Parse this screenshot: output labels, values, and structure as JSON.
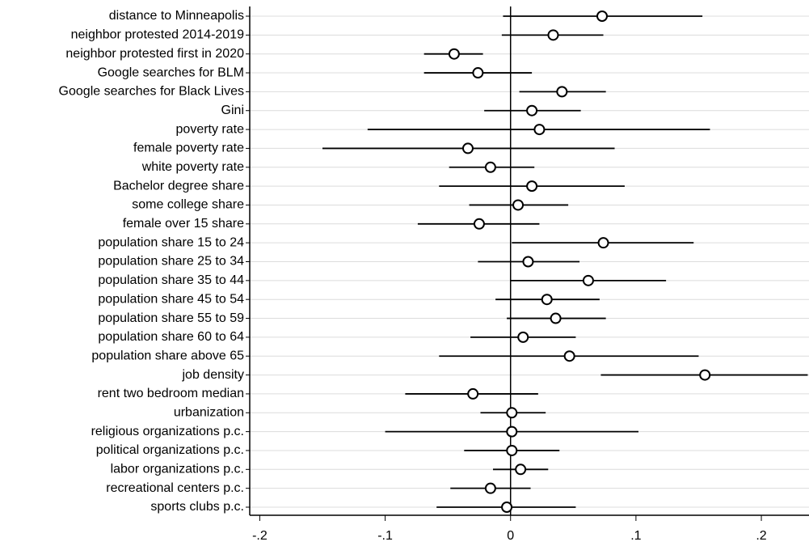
{
  "chart_data": {
    "type": "coefplot",
    "categories": [
      "distance to Minneapolis",
      "neighbor protested 2014-2019",
      "neighbor protested first in 2020",
      "Google searches for BLM",
      "Google searches for Black Lives",
      "Gini",
      "poverty rate",
      "female poverty rate",
      "white poverty rate",
      "Bachelor degree share",
      "some college share",
      "female over 15 share",
      "population share 15 to 24",
      "population share 25 to 34",
      "population share 35 to 44",
      "population share 45 to 54",
      "population share 55 to 59",
      "population share 60 to 64",
      "population share above 65",
      "job density",
      "rent two bedroom median",
      "urbanization",
      "religious organizations p.c.",
      "political organizations p.c.",
      "labor organizations p.c.",
      "recreational centers p.c.",
      "sports clubs p.c."
    ],
    "values": [
      0.073,
      0.034,
      -0.045,
      -0.026,
      0.041,
      0.017,
      0.023,
      -0.034,
      -0.016,
      0.017,
      0.006,
      -0.025,
      0.074,
      0.014,
      0.062,
      0.029,
      0.036,
      0.01,
      0.047,
      0.155,
      -0.03,
      0.001,
      0.001,
      0.001,
      0.008,
      -0.016,
      -0.003
    ],
    "lower": [
      -0.006,
      -0.007,
      -0.069,
      -0.069,
      0.007,
      -0.021,
      -0.114,
      -0.15,
      -0.049,
      -0.057,
      -0.033,
      -0.074,
      0.001,
      -0.026,
      0.0,
      -0.012,
      -0.003,
      -0.032,
      -0.057,
      0.072,
      -0.084,
      -0.024,
      -0.1,
      -0.037,
      -0.014,
      -0.048,
      -0.059
    ],
    "upper": [
      0.153,
      0.074,
      -0.022,
      0.017,
      0.076,
      0.056,
      0.159,
      0.083,
      0.019,
      0.091,
      0.046,
      0.023,
      0.146,
      0.055,
      0.124,
      0.071,
      0.076,
      0.052,
      0.15,
      0.237,
      0.022,
      0.028,
      0.102,
      0.039,
      0.03,
      0.016,
      0.052
    ],
    "color": "#000000",
    "xlim": [
      -0.208,
      0.238
    ],
    "xticks": [
      {
        "value": -0.2,
        "label": "-.2"
      },
      {
        "value": -0.1,
        "label": "-.1"
      },
      0,
      {
        "value": 0.1,
        "label": ".1"
      },
      {
        "value": 0.2,
        "label": ".2"
      }
    ],
    "xline": 0,
    "grid": true
  }
}
